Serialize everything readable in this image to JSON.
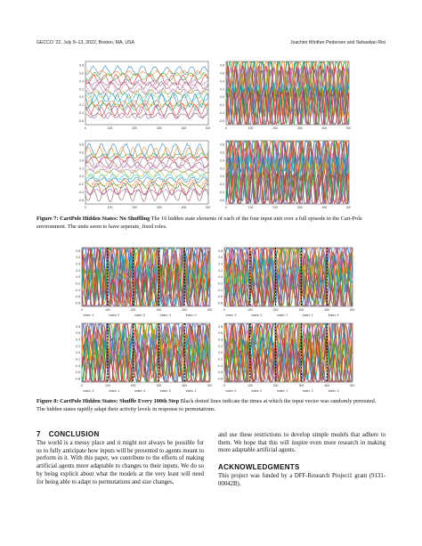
{
  "header": {
    "left": "GECCO '22, July 9–13, 2022, Boston, MA, USA",
    "right": "Joachim Winther Pedersen and Sebastian Risi"
  },
  "fig7": {
    "caption_bold": "Figure 7: CartPole Hidden States: No Shuffling",
    "caption_text": " The 16 hidden state elements of each of the four input unit over a full episode in the Cart-Pole environment. The units seem to have seperate, fixed roles.",
    "panels": [
      {
        "style": "waves",
        "ticks_y": [
          "0.8",
          "0.6",
          "0.4",
          "0.2",
          "0.0",
          "-0.2",
          "-0.4",
          "-0.6"
        ],
        "ticks_x": [
          "0",
          "100",
          "200",
          "300",
          "400",
          "500"
        ]
      },
      {
        "style": "dense",
        "ticks_y": [
          "0.8",
          "0.6",
          "0.4",
          "0.2",
          "0.0",
          "-0.2",
          "-0.4",
          "-0.6"
        ],
        "ticks_x": [
          "0",
          "100",
          "200",
          "300",
          "400",
          "500"
        ]
      },
      {
        "style": "waves",
        "ticks_y": [
          "0.8",
          "0.6",
          "0.4",
          "0.2",
          "0.0",
          "-0.2",
          "-0.4",
          "-0.6"
        ],
        "ticks_x": [
          "0",
          "100",
          "200",
          "300",
          "400",
          "500"
        ]
      },
      {
        "style": "dense",
        "ticks_y": [
          "0.8",
          "0.6",
          "0.4",
          "0.2",
          "0.0",
          "-0.2",
          "-0.4",
          "-0.6"
        ],
        "ticks_x": [
          "0",
          "100",
          "200",
          "300",
          "400",
          "500"
        ]
      }
    ]
  },
  "fig8": {
    "caption_bold": "Figure 8: CartPole Hidden States: Shuffle Every 100th Step",
    "caption_text": " Black dotted lines indicate the times at which the input vector was randomly permuted. The hidden states rapidly adapt their activity levels in response to permutations.",
    "ticks_y": [
      "0.8",
      "0.6",
      "0.4",
      "0.2",
      "0.0",
      "-0.2",
      "-0.4",
      "-0.6",
      "-0.8"
    ],
    "ticks_x": [
      "0",
      "100",
      "200",
      "300",
      "400",
      "500"
    ],
    "panels": [
      {
        "index_labels": [
          "index: 1",
          "index: 3",
          "index: 0",
          "index: 3",
          "index: 0"
        ]
      },
      {
        "index_labels": [
          "index: 2",
          "index: 1",
          "index: 2",
          "index: 1",
          "index: 2"
        ]
      },
      {
        "index_labels": [
          "index: 2",
          "index: 1",
          "index: 3",
          "index: 0",
          "index: 1"
        ]
      },
      {
        "index_labels": [
          "index: 0",
          "index: 2",
          "index: 1",
          "index: 2",
          "index: 3"
        ]
      }
    ]
  },
  "section7": {
    "number": "7",
    "title": "CONCLUSION",
    "left_text": "The world is a messy place and it might not always be possible for us to fully anticipate how inputs will be presented to agents meant to perform in it. With this paper, we contribute to the efforts of making artificial agents more adaptable to changes to their inputs. We do so by being explicit about what the models at the very least will need for being able to adapt to permutations and size changes,",
    "right_text": "and use these restrictions to develop simple models that adhere to them. We hope that this will inspire even more research in making more adaptable artificial agents."
  },
  "acknowledgments": {
    "title": "ACKNOWLEDGMENTS",
    "text": "This project was funded by a DFF-Research Project1 grant (9131-00042B)."
  },
  "colors": [
    "#1f77b4",
    "#ff7f0e",
    "#2ca02c",
    "#d62728",
    "#9467bd",
    "#8c564b",
    "#e377c2",
    "#7f7f7f",
    "#bcbd22",
    "#17becf",
    "#1f77b4",
    "#ff7f0e",
    "#2ca02c",
    "#d62728",
    "#9467bd",
    "#8c564b"
  ]
}
